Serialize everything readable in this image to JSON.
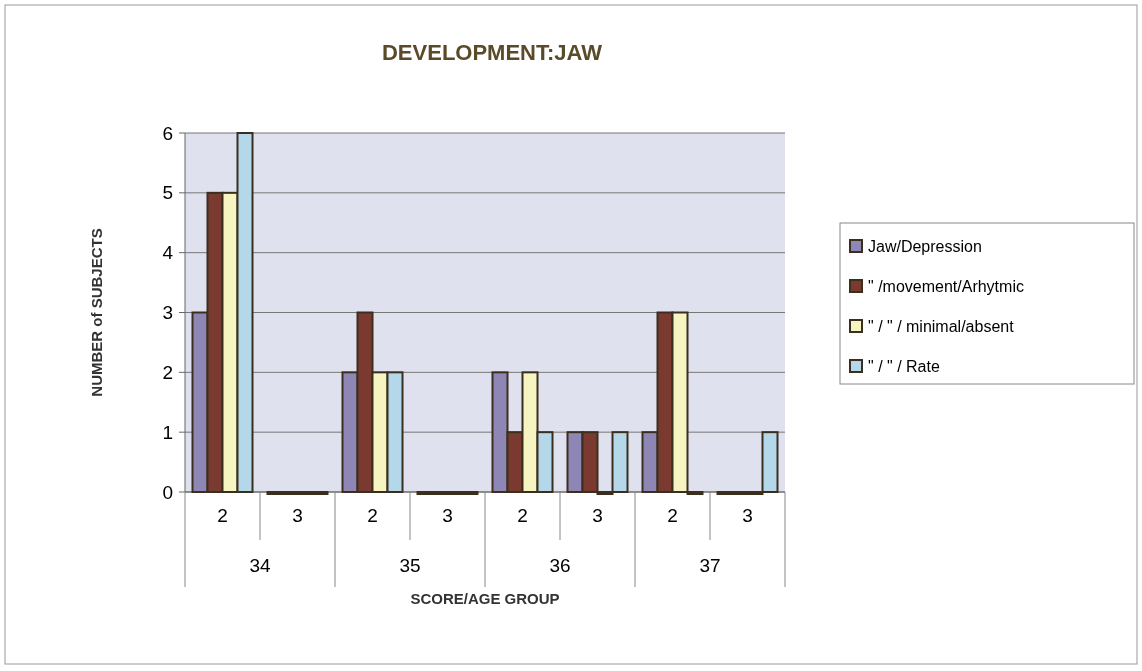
{
  "chart_data": {
    "type": "bar",
    "title": "DEVELOPMENT:JAW",
    "xlabel": "SCORE/AGE GROUP",
    "ylabel": "NUMBER of SUBJECTS",
    "categories": [
      "2",
      "3",
      "2",
      "3",
      "2",
      "3",
      "2",
      "3"
    ],
    "annotations": [
      "34",
      "35",
      "36",
      "37"
    ],
    "series": [
      {
        "name": "Jaw/Depression",
        "color": "#8e86b4",
        "values": [
          3,
          0,
          2,
          0,
          2,
          1,
          1,
          0
        ]
      },
      {
        "name": "\" /movement/Arhytmic",
        "color": "#7a3a30",
        "values": [
          5,
          0,
          3,
          0,
          1,
          1,
          3,
          0
        ]
      },
      {
        "name": "\" / \" / minimal/absent",
        "color": "#f6f4c0",
        "values": [
          5,
          0,
          2,
          0,
          2,
          0,
          3,
          0
        ]
      },
      {
        "name": "\" / \" / Rate",
        "color": "#b4d8ea",
        "values": [
          6,
          0,
          2,
          0,
          1,
          1,
          0,
          1
        ]
      }
    ],
    "ylim": [
      0,
      6
    ],
    "yticks": [
      0,
      1,
      2,
      3,
      4,
      5,
      6
    ],
    "grid": "y",
    "legend": "right"
  }
}
